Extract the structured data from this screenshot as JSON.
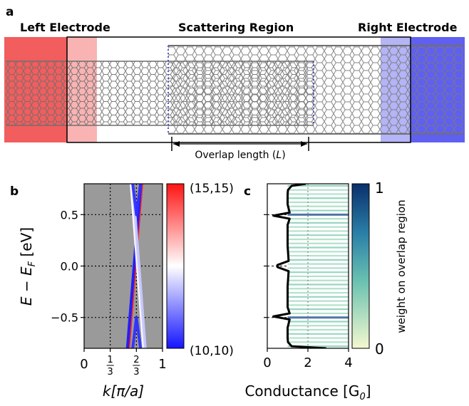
{
  "panel_a": {
    "letter": "a",
    "left_title": "Left Electrode",
    "center_title": "Scattering Region",
    "right_title": "Right Electrode",
    "overlap_label": "Overlap length (",
    "overlap_symbol": "L",
    "overlap_close": ")"
  },
  "panel_b": {
    "letter": "b",
    "ylabel": "E − E",
    "ylabel_sub": "F",
    "ylabel_unit": " [eV]",
    "xlabel": "k[π/a]",
    "colorbar_top": "(15,15)",
    "colorbar_bottom": "(10,10)"
  },
  "panel_c": {
    "letter": "c",
    "xlabel": "Conductance [G",
    "xlabel_sub": "0",
    "xlabel_close": "]",
    "colorbar_label": "weight on overlap region",
    "colorbar_top": "1",
    "colorbar_bottom": "0"
  },
  "colors": {
    "left_electrode": "#f25d5d",
    "right_electrode": "#6a6af5",
    "tube": "#6f6f6f",
    "plot_bg": "#9a9a9a"
  },
  "chart_data": [
    {
      "type": "line",
      "panel": "b",
      "xlim": [
        0,
        1
      ],
      "ylim": [
        -0.8,
        0.8
      ],
      "xticks": [
        0,
        0.3333,
        0.6667,
        1
      ],
      "xtick_labels": [
        "0",
        "1/3",
        "2/3",
        "1"
      ],
      "yticks": [
        -0.5,
        0.0,
        0.5
      ],
      "ytick_labels": [
        "−0.5",
        "0.0",
        "0.5"
      ],
      "grid": "dotted at ticks",
      "series": [
        {
          "color": "#ff2020",
          "points": [
            [
              0.567,
              -0.8
            ],
            [
              0.735,
              0.8
            ]
          ]
        },
        {
          "color": "#1a1aff",
          "points": [
            [
              0.552,
              -0.8
            ],
            [
              0.722,
              0.8
            ]
          ]
        },
        {
          "color": "#ffffff",
          "points": [
            [
              0.6,
              0.8
            ],
            [
              0.68,
              0.0
            ],
            [
              0.76,
              -0.8
            ]
          ]
        },
        {
          "color": "#c8c8ff",
          "points": [
            [
              0.62,
              0.8
            ],
            [
              0.7,
              0.0
            ],
            [
              0.78,
              -0.8
            ]
          ]
        },
        {
          "color": "#3030ff",
          "points": [
            [
              0.667,
              0.5
            ],
            [
              0.72,
              0.8
            ]
          ]
        },
        {
          "color": "#3030ff",
          "points": [
            [
              0.667,
              0.5
            ],
            [
              0.62,
              0.8
            ]
          ]
        },
        {
          "color": "#3030ff",
          "points": [
            [
              0.667,
              -0.5
            ],
            [
              0.72,
              -0.8
            ]
          ]
        },
        {
          "color": "#3030ff",
          "points": [
            [
              0.667,
              -0.5
            ],
            [
              0.62,
              -0.8
            ]
          ]
        }
      ]
    },
    {
      "type": "line",
      "panel": "c",
      "xlim": [
        0,
        4
      ],
      "ylim": [
        -0.8,
        0.8
      ],
      "xticks": [
        0,
        2,
        4
      ],
      "xtick_labels": [
        "0",
        "2",
        "4"
      ],
      "conductance": {
        "y": [
          0.8,
          0.78,
          0.74,
          0.7,
          0.6,
          0.52,
          0.49,
          0.46,
          0.4,
          0.2,
          0.05,
          0.01,
          -0.01,
          -0.05,
          -0.2,
          -0.4,
          -0.46,
          -0.49,
          -0.52,
          -0.6,
          -0.7,
          -0.74,
          -0.78,
          -0.8
        ],
        "x": [
          1.9,
          1.2,
          1.02,
          1.0,
          1.0,
          1.1,
          0.3,
          1.1,
          1.0,
          1.0,
          1.05,
          0.5,
          0.5,
          1.05,
          1.0,
          1.0,
          1.1,
          0.3,
          1.1,
          1.0,
          1.0,
          1.02,
          1.2,
          2.9
        ]
      },
      "vlines": [
        2
      ],
      "horizontal_band_count": 40,
      "colorbar_range": [
        0,
        1
      ]
    }
  ]
}
